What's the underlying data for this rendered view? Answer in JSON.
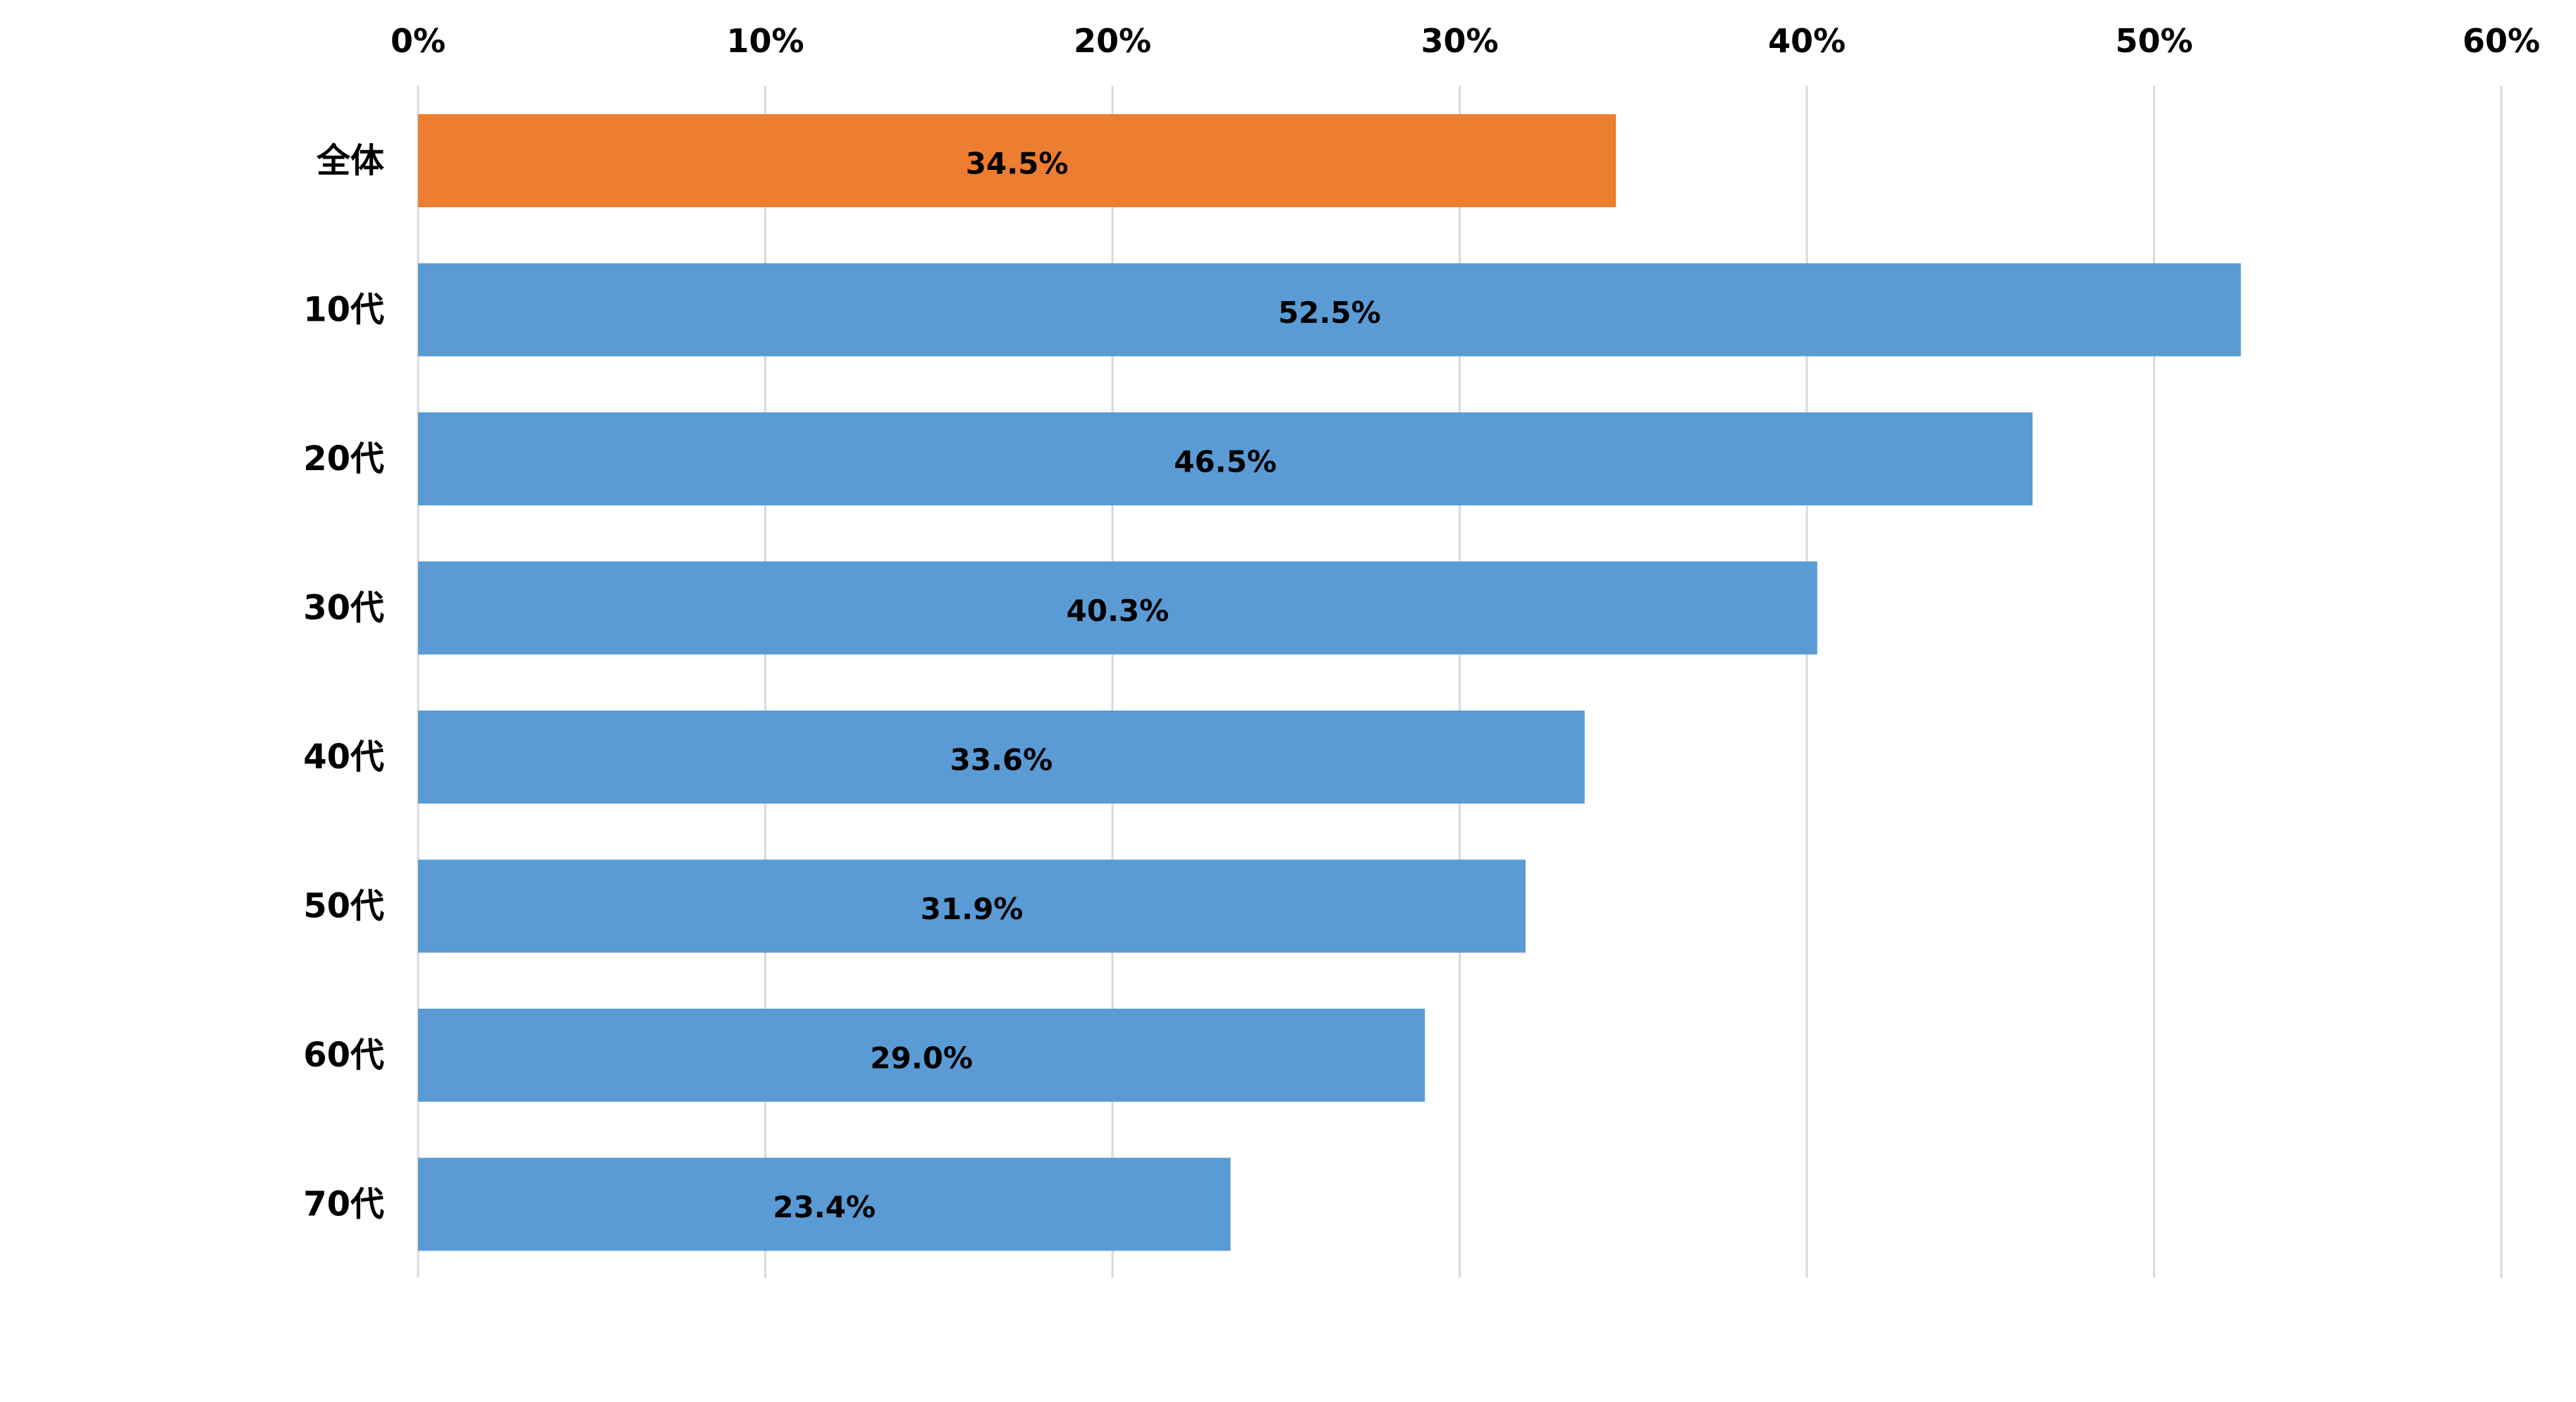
{
  "chart_data": {
    "type": "bar",
    "orientation": "horizontal",
    "categories": [
      "全体",
      "10代",
      "20代",
      "30代",
      "40代",
      "50代",
      "60代",
      "70代"
    ],
    "values": [
      34.5,
      52.5,
      46.5,
      40.3,
      33.6,
      31.9,
      29.0,
      23.4
    ],
    "data_labels": [
      "34.5%",
      "52.5%",
      "46.5%",
      "40.3%",
      "33.6%",
      "31.9%",
      "29.0%",
      "23.4%"
    ],
    "bar_colors": [
      "#ED7D31",
      "#5B9BD5",
      "#5B9BD5",
      "#5B9BD5",
      "#5B9BD5",
      "#5B9BD5",
      "#5B9BD5",
      "#5B9BD5"
    ],
    "xlim": [
      0,
      60
    ],
    "x_ticks": [
      0,
      10,
      20,
      30,
      40,
      50,
      60
    ],
    "x_tick_labels": [
      "0%",
      "10%",
      "20%",
      "30%",
      "40%",
      "50%",
      "60%"
    ],
    "x_axis_position": "top",
    "grid": true,
    "grid_color": "#D9D9D9",
    "title": "",
    "xlabel": "",
    "ylabel": "",
    "legend": "none"
  }
}
